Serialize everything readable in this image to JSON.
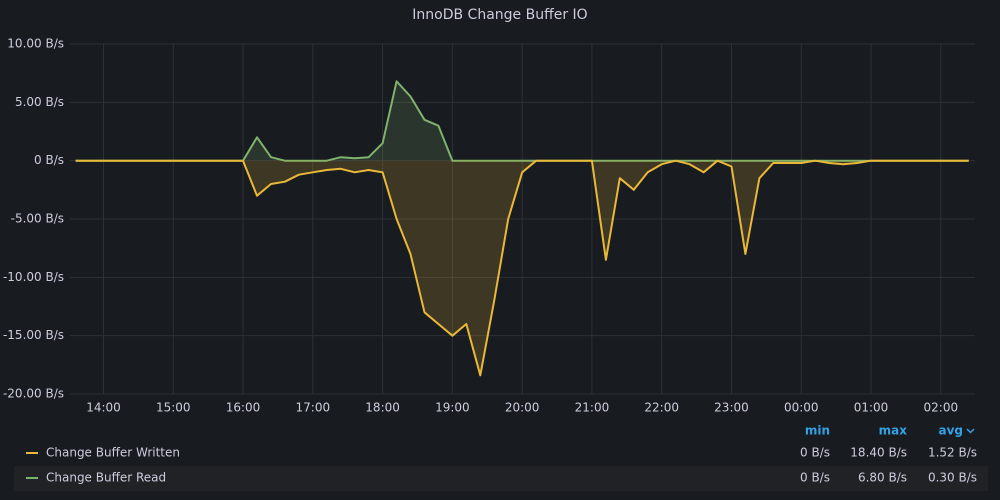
{
  "chart_data": {
    "type": "line",
    "title": "InnoDB Change Buffer IO",
    "x": [
      13.6,
      13.8,
      14,
      14.2,
      14.4,
      14.6,
      14.8,
      15,
      15.2,
      15.4,
      15.6,
      15.8,
      16,
      16.2,
      16.4,
      16.6,
      16.8,
      17,
      17.2,
      17.4,
      17.6,
      17.8,
      18,
      18.2,
      18.4,
      18.6,
      18.8,
      19,
      19.2,
      19.4,
      19.6,
      19.8,
      20,
      20.2,
      20.4,
      20.6,
      20.8,
      21,
      21.2,
      21.4,
      21.6,
      21.8,
      22,
      22.2,
      22.4,
      22.6,
      22.8,
      23,
      23.2,
      23.4,
      23.6,
      23.8,
      24,
      24.2,
      24.4,
      24.6,
      24.8,
      25,
      25.2,
      25.4,
      25.6,
      25.8,
      26,
      26.2,
      26.4
    ],
    "series": [
      {
        "name": "Change Buffer Written",
        "color": "#eab839",
        "values": [
          0,
          0,
          0,
          0,
          0,
          0,
          0,
          0,
          0,
          0,
          0,
          0,
          0,
          -3,
          -2,
          -1.8,
          -1.2,
          -1,
          -0.8,
          -0.7,
          -1,
          -0.8,
          -1,
          -5,
          -8,
          -13,
          -14,
          -15,
          -14,
          -18.4,
          -12,
          -5,
          -1,
          0,
          0,
          0,
          0,
          0,
          -8.5,
          -1.5,
          -2.5,
          -1,
          -0.3,
          0,
          -0.3,
          -1,
          0,
          -0.5,
          -8,
          -1.5,
          -0.2,
          -0.2,
          -0.2,
          0,
          -0.2,
          -0.3,
          -0.2,
          0,
          0,
          0,
          0,
          0,
          0,
          0,
          0
        ],
        "legend_values": [
          "0 B/s",
          "18.40 B/s",
          "1.52 B/s"
        ]
      },
      {
        "name": "Change Buffer Read",
        "color": "#7eb26d",
        "values": [
          0,
          0,
          0,
          0,
          0,
          0,
          0,
          0,
          0,
          0,
          0,
          0,
          0,
          2,
          0.3,
          0,
          0,
          0,
          0,
          0.3,
          0.2,
          0.3,
          1.5,
          6.8,
          5.5,
          3.5,
          3,
          0,
          0,
          0,
          0,
          0,
          0,
          0,
          0,
          0,
          0,
          0,
          0,
          0,
          0,
          0,
          0,
          0,
          0,
          0,
          0,
          0,
          0,
          0,
          0,
          0,
          0,
          0,
          0,
          0,
          0,
          0,
          0,
          0,
          0,
          0,
          0,
          0,
          0
        ],
        "legend_values": [
          "0 B/s",
          "6.80 B/s",
          "0.30 B/s"
        ]
      }
    ],
    "legend_columns": [
      "min",
      "max",
      "avg"
    ],
    "xlim": [
      13.52,
      26.49
    ],
    "xticks": [
      {
        "value": 14,
        "label": "14:00"
      },
      {
        "value": 15,
        "label": "15:00"
      },
      {
        "value": 16,
        "label": "16:00"
      },
      {
        "value": 17,
        "label": "17:00"
      },
      {
        "value": 18,
        "label": "18:00"
      },
      {
        "value": 19,
        "label": "19:00"
      },
      {
        "value": 20,
        "label": "20:00"
      },
      {
        "value": 21,
        "label": "21:00"
      },
      {
        "value": 22,
        "label": "22:00"
      },
      {
        "value": 23,
        "label": "23:00"
      },
      {
        "value": 24,
        "label": "00:00"
      },
      {
        "value": 25,
        "label": "01:00"
      },
      {
        "value": 26,
        "label": "02:00"
      }
    ],
    "ylim": [
      -20,
      10
    ],
    "yticks": [
      {
        "value": 10,
        "label": "10.00 B/s"
      },
      {
        "value": 5,
        "label": "5.00 B/s"
      },
      {
        "value": 0,
        "label": "0 B/s"
      },
      {
        "value": -5,
        "label": "-5.00 B/s"
      },
      {
        "value": -10,
        "label": "-10.00 B/s"
      },
      {
        "value": -15,
        "label": "-15.00 B/s"
      },
      {
        "value": -20,
        "label": "-20.00 B/s"
      }
    ],
    "grid": true
  }
}
